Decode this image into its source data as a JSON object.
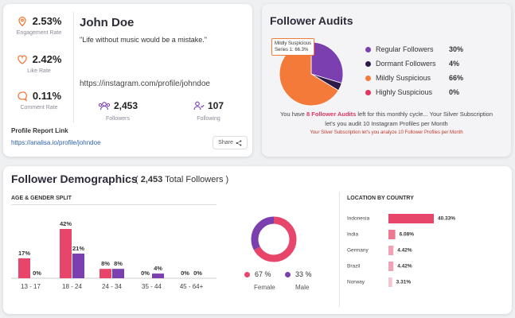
{
  "profile": {
    "engagement_rate": {
      "value": "2.53%",
      "label": "Engagement Rate"
    },
    "like_rate": {
      "value": "2.42%",
      "label": "Like Rate"
    },
    "comment_rate": {
      "value": "0.11%",
      "label": "Comment Rate"
    },
    "name": "John Doe",
    "quote": "\"Life without music would be a mistake.\"",
    "instagram_url": "https://instagram.com/profile/johndoe",
    "followers": {
      "value": "2,453",
      "label": "Followers"
    },
    "following": {
      "value": "107",
      "label": "Following"
    },
    "report_link_title": "Profile Report Link",
    "report_link": "https://analisa.io/profile/johndoe",
    "share_label": "Share"
  },
  "audits": {
    "title": "Follower Audits",
    "tooltip_title": "Mildly Suspicious",
    "tooltip_value": "Series 1: 66.3%",
    "legend": [
      {
        "label": "Regular Followers",
        "value": "30%",
        "color": "#7b3fb0"
      },
      {
        "label": "Dormant Followers",
        "value": "4%",
        "color": "#2e1a47"
      },
      {
        "label": "Mildly Suspicious",
        "value": "66%",
        "color": "#f47a3a"
      },
      {
        "label": "Highly Suspicious",
        "value": "0%",
        "color": "#e2345f"
      }
    ],
    "message_pre": "You have ",
    "message_highlight": "8 Follower Audits",
    "message_post": " left for this monthly cycle... Your Silver Subscription",
    "message_line2": "let's you audit 10 Instagram Profiles per Month",
    "subscription_note": "Your Silver Subscription let's you analyze 10 Follower Profiles per Month"
  },
  "demographics": {
    "title": "Follower Demographics",
    "total_open": "( ",
    "total_count": "2,453",
    "total_label": " Total Followers )",
    "age_gender_title": "AGE & GENDER SPLIT",
    "female_pct": "67 %",
    "male_pct": "33 %",
    "female_label": "Female",
    "male_label": "Male",
    "female_color": "#e8456b",
    "male_color": "#7b3fb0",
    "country_title": "LOCATION BY COUNTRY"
  },
  "chart_data": [
    {
      "type": "bar",
      "title": "AGE & GENDER SPLIT",
      "categories": [
        "13 - 17",
        "18 - 24",
        "24 - 34",
        "35 - 44",
        "45 - 64+"
      ],
      "series": [
        {
          "name": "Female",
          "values": [
            17,
            42,
            8,
            0,
            0
          ],
          "labels": [
            "17%",
            "42%",
            "8%",
            "0%",
            "0%"
          ],
          "color": "#e8456b"
        },
        {
          "name": "Male",
          "values": [
            0,
            21,
            8,
            4,
            0
          ],
          "labels": [
            "0%",
            "21%",
            "8%",
            "4%",
            "0%"
          ],
          "color": "#7b3fb0"
        }
      ]
    },
    {
      "type": "pie",
      "title": "Follower Audits",
      "categories": [
        "Regular Followers",
        "Dormant Followers",
        "Mildly Suspicious",
        "Highly Suspicious"
      ],
      "values": [
        29.7,
        4.0,
        66.3,
        0
      ]
    },
    {
      "type": "pie",
      "title": "Gender",
      "categories": [
        "Female",
        "Male"
      ],
      "values": [
        67,
        33
      ]
    },
    {
      "type": "bar",
      "title": "LOCATION BY COUNTRY",
      "orientation": "horizontal",
      "categories": [
        "Indonesia",
        "India",
        "Germany",
        "Brazil",
        "Norway"
      ],
      "values": [
        40.33,
        6.08,
        4.42,
        4.42,
        3.31
      ],
      "labels": [
        "40.33%",
        "6.08%",
        "4.42%",
        "4.42%",
        "3.31%"
      ],
      "colors": [
        "#e8456b",
        "#ee7891",
        "#f1a3b5",
        "#f1a3b5",
        "#f5c6d1"
      ]
    }
  ]
}
